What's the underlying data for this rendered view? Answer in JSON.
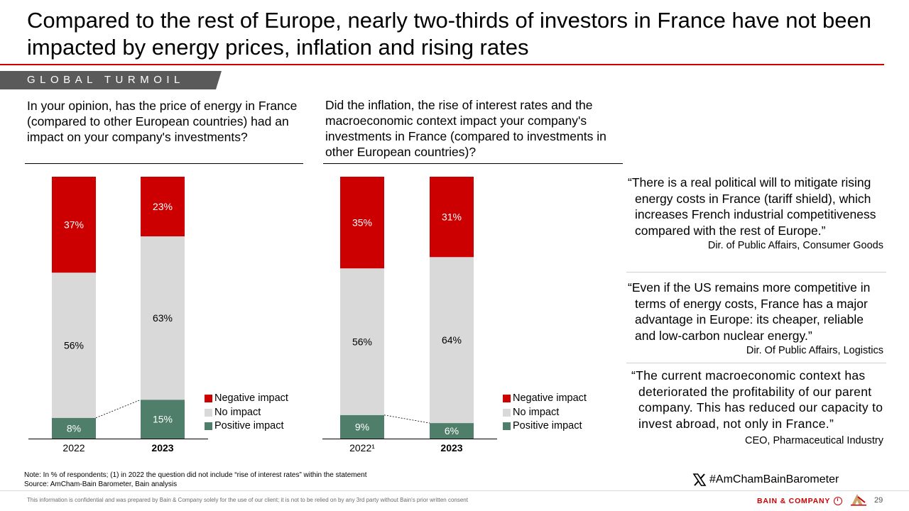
{
  "title": "Compared to the rest of Europe, nearly two-thirds of investors in France have not been impacted by energy prices, inflation and rising rates",
  "section_tag": "GLOBAL TURMOIL",
  "questions": [
    "In your opinion, has the price of energy in France (compared to other European countries) had an impact on your company's investments?",
    "Did the inflation, the rise of interest rates and the macroeconomic context impact your company's investments in France (compared to investments in other European countries)?"
  ],
  "colors": {
    "negative": "#cc0000",
    "no_impact": "#d9d9d9",
    "positive": "#4f7f6a",
    "accent": "#cc0000"
  },
  "legend": [
    "Negative impact",
    "No impact",
    "Positive impact"
  ],
  "chart_data": [
    {
      "type": "bar",
      "stacked": true,
      "title": "",
      "categories": [
        "2022",
        "2023"
      ],
      "category_bold": [
        false,
        true
      ],
      "series": [
        {
          "name": "Positive impact",
          "values": [
            8,
            15
          ],
          "labels": [
            "8%",
            "15%"
          ]
        },
        {
          "name": "No impact",
          "values": [
            56,
            63
          ],
          "labels": [
            "56%",
            "63%"
          ]
        },
        {
          "name": "Negative impact",
          "values": [
            37,
            23
          ],
          "labels": [
            "37%",
            "23%"
          ]
        }
      ],
      "ylim": [
        0,
        100
      ],
      "grid": false,
      "legend_position": "right-bottom"
    },
    {
      "type": "bar",
      "stacked": true,
      "title": "",
      "categories": [
        "2022¹",
        "2023"
      ],
      "category_bold": [
        false,
        true
      ],
      "series": [
        {
          "name": "Positive impact",
          "values": [
            9,
            6
          ],
          "labels": [
            "9%",
            "6%"
          ]
        },
        {
          "name": "No impact",
          "values": [
            56,
            64
          ],
          "labels": [
            "56%",
            "64%"
          ]
        },
        {
          "name": "Negative impact",
          "values": [
            35,
            31
          ],
          "labels": [
            "35%",
            "31%"
          ]
        }
      ],
      "ylim": [
        0,
        100
      ],
      "grid": false,
      "legend_position": "right-bottom"
    }
  ],
  "quotes": [
    {
      "text": "“There is a real political will to mitigate rising energy costs in France (tariff shield), which increases French industrial competitiveness compared with the rest of Europe.”",
      "author": "Dir. of Public Affairs, Consumer Goods"
    },
    {
      "text": "“Even if the US remains more competitive in terms of energy costs, France has a major advantage in Europe: its cheaper, reliable and low-carbon nuclear energy.”",
      "author": "Dir. Of Public Affairs, Logistics"
    },
    {
      "text": "“The current macroeconomic context has deteriorated the profitability of our parent company. This has reduced our capacity to invest abroad, not only in France.”",
      "author": "CEO, Pharmaceutical Industry"
    }
  ],
  "hashtag": "#AmChamBainBarometer",
  "note": "Note: In % of respondents; (1) in 2022 the question did not include “rise of interest rates” within the statement",
  "source": "Source: AmCham-Bain Barometer, Bain analysis",
  "footer": "This information is confidential and was prepared by Bain & Company solely for the use of our client; it is not to be relied on by any 3rd party without Bain's prior written consent",
  "brand": "BAIN & COMPANY",
  "page_number": "29"
}
